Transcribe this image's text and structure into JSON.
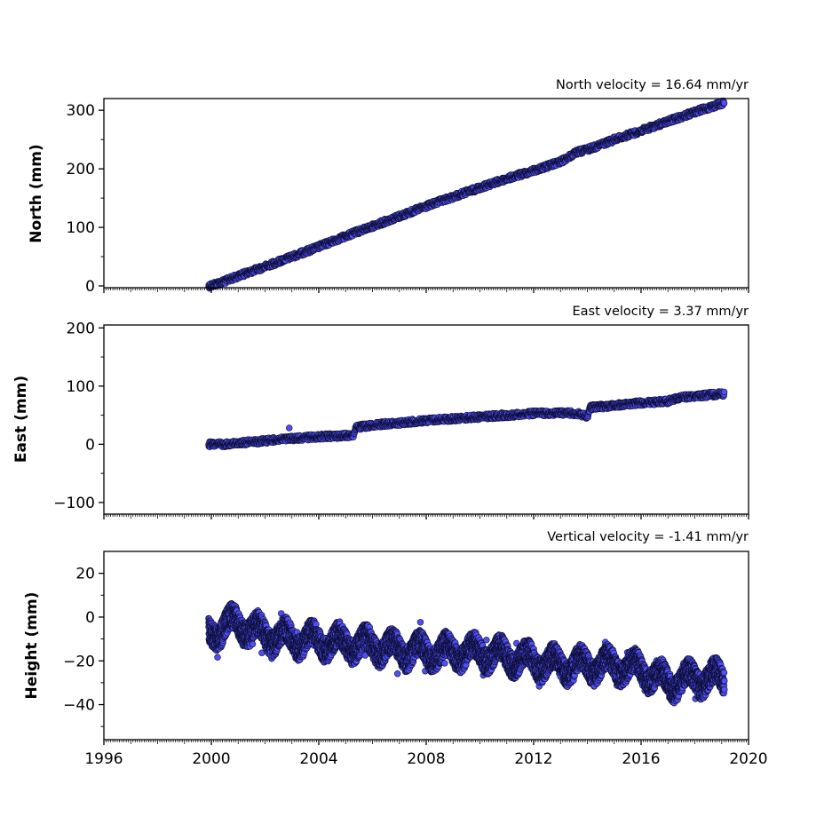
{
  "chart_data": [
    {
      "type": "scatter",
      "title": "North velocity = 16.64 mm/yr",
      "ylabel": "North (mm)",
      "xlim": [
        1996,
        2020
      ],
      "ylim": [
        -3,
        320
      ],
      "x_ticks": [
        1996,
        2000,
        2004,
        2008,
        2012,
        2016,
        2020
      ],
      "y_ticks": [
        0,
        100,
        200,
        300
      ],
      "show_x_tick_labels": false,
      "marker_color": "#4f4ff5",
      "marker_edge_color": "#0d0d33",
      "series": [
        {
          "x": [
            1999.9,
            2000.5,
            2001.0,
            2002.0,
            2003.0,
            2004.0,
            2005.0,
            2006.0,
            2007.0,
            2008.0,
            2009.0,
            2010.0,
            2011.0,
            2012.0,
            2013.0,
            2013.6,
            2014.0,
            2015.0,
            2016.0,
            2017.0,
            2018.0,
            2019.1
          ],
          "y": [
            0,
            8,
            17,
            33,
            50,
            67,
            85,
            102,
            119,
            136,
            152,
            168,
            183,
            197,
            212,
            228,
            233,
            250,
            265,
            281,
            297,
            313
          ]
        }
      ]
    },
    {
      "type": "scatter",
      "title": "East velocity = 3.37 mm/yr",
      "ylabel": "East (mm)",
      "xlim": [
        1996,
        2020
      ],
      "ylim": [
        -120,
        205
      ],
      "x_ticks": [
        1996,
        2000,
        2004,
        2008,
        2012,
        2016,
        2020
      ],
      "y_ticks": [
        -100,
        0,
        100,
        200
      ],
      "show_x_tick_labels": false,
      "marker_color": "#4f4ff5",
      "marker_edge_color": "#0d0d33",
      "outliers": [
        {
          "x": 2002.9,
          "y": 28
        }
      ],
      "series": [
        {
          "x": [
            1999.9,
            2000.5,
            2001.0,
            2002.0,
            2003.0,
            2004.0,
            2005.0,
            2005.3,
            2005.4,
            2006.0,
            2007.0,
            2008.0,
            2009.0,
            2010.0,
            2011.0,
            2012.0,
            2013.0,
            2013.6,
            2014.0,
            2014.1,
            2015.0,
            2016.0,
            2017.0,
            2017.4,
            2018.0,
            2019.1
          ],
          "y": [
            0,
            0,
            2,
            6,
            10,
            13,
            15,
            16,
            29,
            33,
            37,
            41,
            44,
            47,
            50,
            53,
            54,
            53,
            48,
            63,
            67,
            71,
            74,
            80,
            83,
            87
          ]
        }
      ]
    },
    {
      "type": "scatter",
      "title": "Vertical velocity = -1.41 mm/yr",
      "ylabel": "Height (mm)",
      "xlabel": "",
      "xlim": [
        1996,
        2020
      ],
      "ylim": [
        -56,
        30
      ],
      "x_ticks": [
        1996,
        2000,
        2004,
        2008,
        2012,
        2016,
        2020
      ],
      "x_tick_labels": [
        "1996",
        "2000",
        "2004",
        "2008",
        "2012",
        "2016",
        "2020"
      ],
      "y_ticks": [
        -40,
        -20,
        0,
        20
      ],
      "show_x_tick_labels": true,
      "marker_color": "#4f4ff5",
      "marker_edge_color": "#0d0d33",
      "series": [
        {
          "x": [
            1999.9,
            2000.5,
            2001.0,
            2002.0,
            2003.0,
            2004.0,
            2005.0,
            2006.0,
            2007.0,
            2008.0,
            2009.0,
            2010.0,
            2011.0,
            2012.0,
            2013.0,
            2014.0,
            2015.0,
            2016.0,
            2017.0,
            2018.0,
            2019.1
          ],
          "y": [
            -8,
            -4,
            -3,
            -8,
            -10,
            -11,
            -12,
            -13,
            -15,
            -16,
            -16,
            -16,
            -18,
            -20,
            -22,
            -22,
            -22,
            -24,
            -30,
            -28,
            -28
          ]
        }
      ]
    }
  ]
}
